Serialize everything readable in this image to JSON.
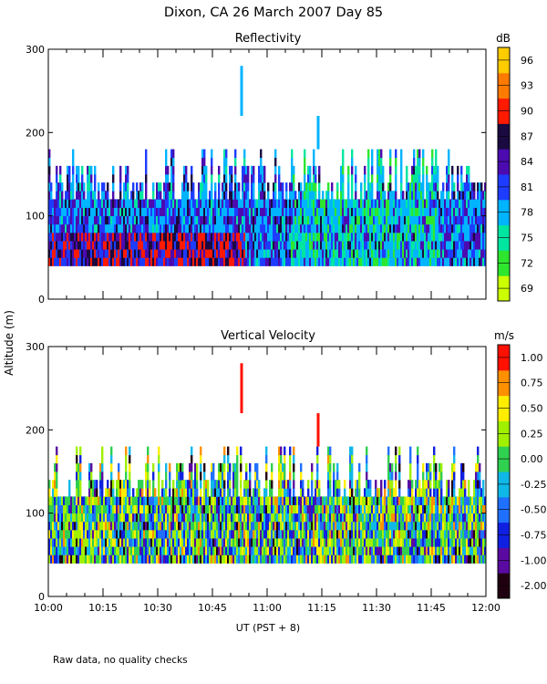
{
  "figure_title": "Dixon, CA 26 March 2007  Day  85",
  "ylabel": "Altitude (m)",
  "xlabel": "UT  (PST + 8)",
  "footnote": "Raw data, no quality checks",
  "chart_data": [
    {
      "type": "heatmap",
      "title": "Reflectivity",
      "variable": "reflectivity",
      "units": "dB",
      "x_range": [
        "10:00",
        "12:00"
      ],
      "x_ticks": [
        "10:00",
        "10:15",
        "10:30",
        "10:45",
        "11:00",
        "11:15",
        "11:30",
        "11:45",
        "12:00"
      ],
      "ylim": [
        0,
        300
      ],
      "y_ticks": [
        0,
        100,
        200,
        300
      ],
      "data_bottom_m": 40,
      "typical_top_m": 140,
      "max_echo_top_m": 180,
      "spike_events": [
        {
          "time": "10:53",
          "alt_range_m": [
            220,
            280
          ]
        },
        {
          "time": "11:14",
          "alt_range_m": [
            180,
            220
          ]
        }
      ],
      "colorbar": {
        "label": "dB",
        "ticks": [
          69,
          72,
          75,
          78,
          81,
          84,
          87,
          90,
          93,
          96
        ],
        "range": [
          67.5,
          97.5
        ],
        "colors": [
          "#ccff00",
          "#2ee62e",
          "#00e6a0",
          "#00b4ff",
          "#1e3cff",
          "#4b0bb0",
          "#1a0a40",
          "#ff1a00",
          "#ff7a00",
          "#ffcc00"
        ]
      }
    },
    {
      "type": "heatmap",
      "title": "Vertical Velocity",
      "variable": "vertical_velocity",
      "units": "m/s",
      "x_range": [
        "10:00",
        "12:00"
      ],
      "x_ticks": [
        "10:00",
        "10:15",
        "10:30",
        "10:45",
        "11:00",
        "11:15",
        "11:30",
        "11:45",
        "12:00"
      ],
      "ylim": [
        0,
        300
      ],
      "y_ticks": [
        0,
        100,
        200,
        300
      ],
      "data_bottom_m": 40,
      "typical_top_m": 140,
      "max_echo_top_m": 180,
      "spike_events": [
        {
          "time": "10:53",
          "alt_range_m": [
            220,
            280
          ]
        },
        {
          "time": "11:14",
          "alt_range_m": [
            180,
            220
          ]
        }
      ],
      "colorbar": {
        "label": "m/s",
        "ticks": [
          "-2.00",
          "-1.00",
          "-0.75",
          "-0.50",
          "-0.25",
          "0.00",
          "0.25",
          "0.50",
          "0.75",
          "1.00"
        ],
        "colors": [
          "#200010",
          "#5a0aa0",
          "#1020e0",
          "#2070ff",
          "#10b8e8",
          "#30d050",
          "#a0f000",
          "#ffee00",
          "#ff9000",
          "#ff1000"
        ]
      }
    }
  ]
}
